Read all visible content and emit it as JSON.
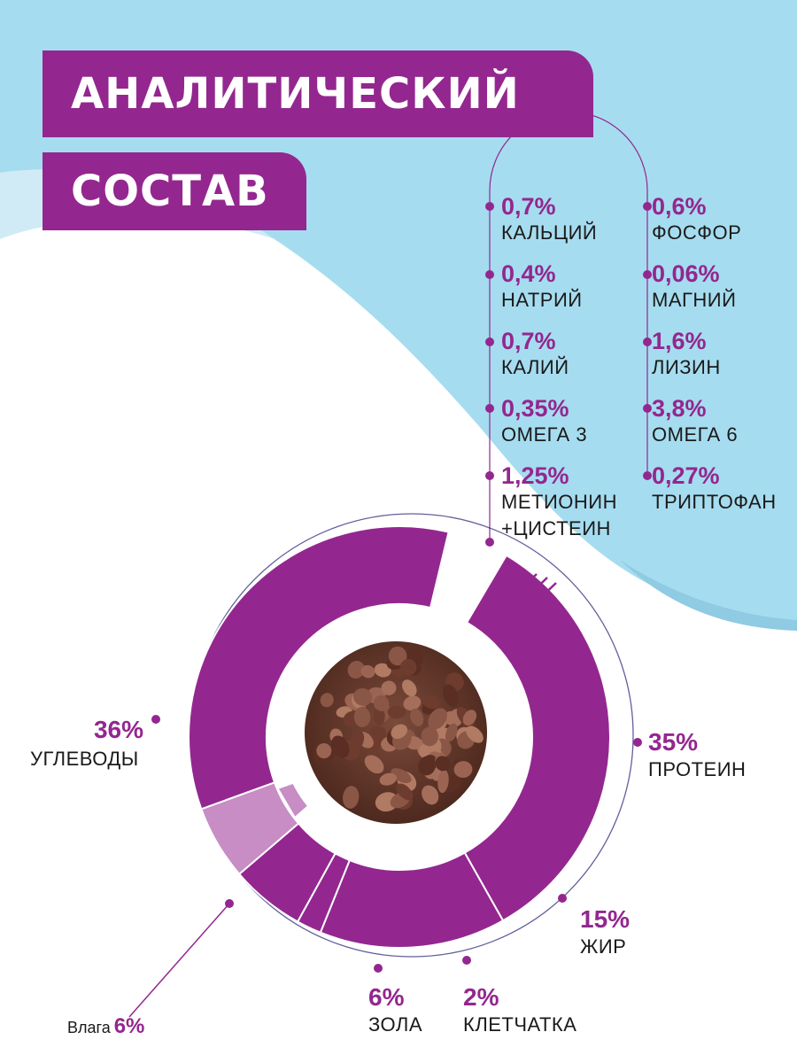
{
  "title": {
    "line1": "АНАЛИТИЧЕСКИЙ",
    "line2": "СОСТАВ"
  },
  "colors": {
    "accent": "#93278f",
    "accent_light": "#c78dc4",
    "sky": "#a6dcef",
    "navy": "#2e2a7a"
  },
  "minerals": [
    {
      "value": "0,7%",
      "label": "КАЛЬЦИЙ"
    },
    {
      "value": "0,6%",
      "label": "ФОСФОР"
    },
    {
      "value": "0,4%",
      "label": "НАТРИЙ"
    },
    {
      "value": "0,06%",
      "label": "МАГНИЙ"
    },
    {
      "value": "0,7%",
      "label": "КАЛИЙ"
    },
    {
      "value": "1,6%",
      "label": "ЛИЗИН"
    },
    {
      "value": "0,35%",
      "label": "ОМЕГА 3"
    },
    {
      "value": "3,8%",
      "label": "ОМЕГА 6"
    },
    {
      "value": "1,25%",
      "label": "МЕТИОНИН",
      "label2": "+ЦИСТЕИН"
    },
    {
      "value": "0,27%",
      "label": "ТРИПТОФАН"
    }
  ],
  "chart_data": {
    "type": "pie",
    "title": "",
    "categories": [
      "ПРОТЕИН",
      "ЖИР",
      "КЛЕТЧАТКА",
      "ЗОЛА",
      "Влага",
      "УГЛЕВОДЫ"
    ],
    "values": [
      35,
      15,
      2,
      6,
      6,
      36
    ],
    "labels": [
      "35%",
      "15%",
      "2%",
      "6%",
      "6%",
      "36%"
    ]
  },
  "macros": {
    "protein": {
      "value": "35%",
      "label": "ПРОТЕИН"
    },
    "fat": {
      "value": "15%",
      "label": "ЖИР"
    },
    "fiber": {
      "value": "2%",
      "label": "КЛЕТЧАТКА"
    },
    "ash": {
      "value": "6%",
      "label": "ЗОЛА"
    },
    "moisture": {
      "value": "6%",
      "label": "Влага"
    },
    "carbs": {
      "value": "36%",
      "label": "УГЛЕВОДЫ"
    }
  }
}
